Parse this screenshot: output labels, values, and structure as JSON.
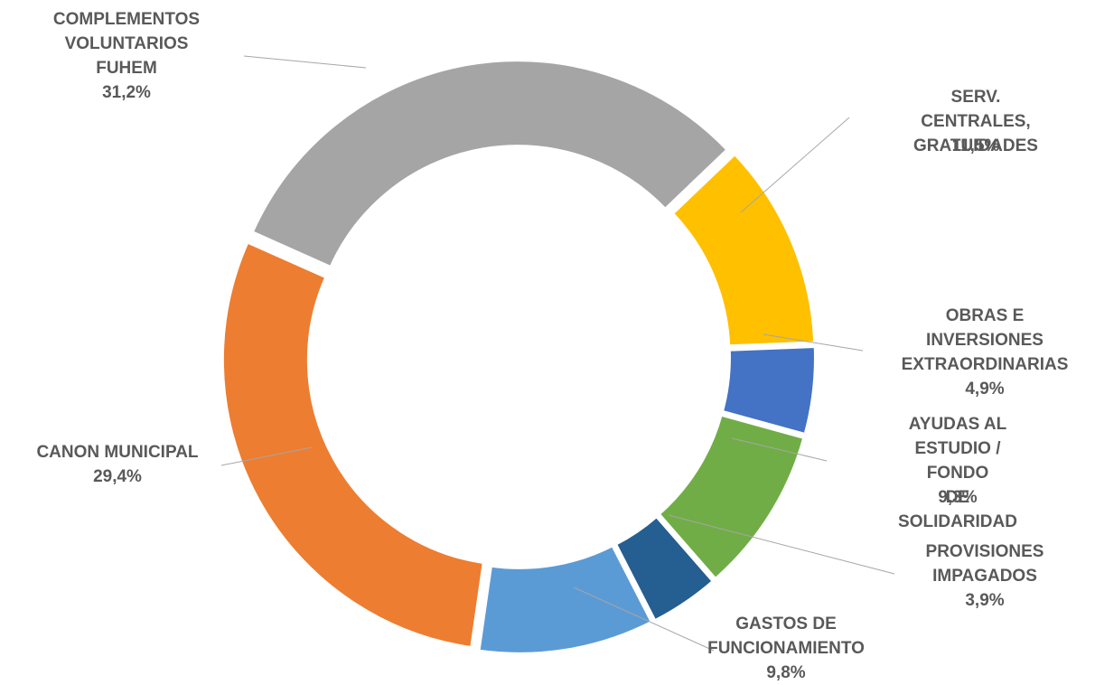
{
  "chart_data": {
    "type": "donut",
    "categories": [
      "COMPLEMENTOS\nVOLUNTARIOS\nFUHEM",
      "SERV. CENTRALES,\nGRATUIDADES",
      "OBRAS E\nINVERSIONES\nEXTRAORDINARIAS",
      "AYUDAS AL\nESTUDIO / FONDO\nDE SOLIDARIDAD",
      "PROVISIONES\nIMPAGADOS",
      "GASTOS DE\nFUNCIONAMIENTO",
      "CANON MUNICIPAL"
    ],
    "values": [
      31.2,
      11.5,
      4.9,
      9.3,
      3.9,
      9.8,
      29.4
    ],
    "value_labels": [
      "31,2%",
      "11,5%",
      "4,9%",
      "9,3%",
      "3,9%",
      "9,8%",
      "29,4%"
    ],
    "colors": [
      "#a5a5a5",
      "#ffc000",
      "#4472c4",
      "#70ad47",
      "#255e91",
      "#5b9bd5",
      "#ed7d31"
    ]
  }
}
